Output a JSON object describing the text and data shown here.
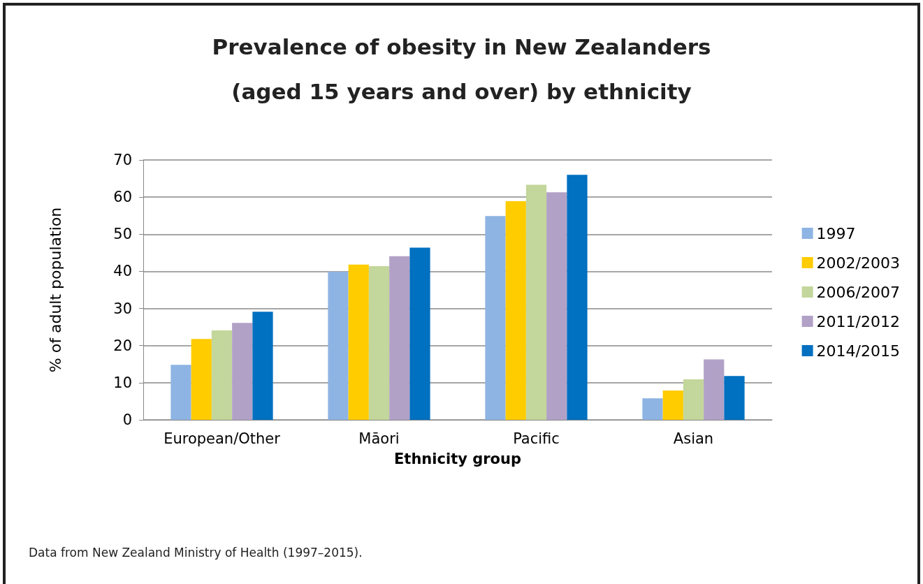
{
  "chart_data": {
    "type": "bar",
    "title": "Prevalence of obesity in New Zealanders\n(aged 15 years and over) by ethnicity",
    "xlabel": "Ethnicity group",
    "ylabel": "% of adult population",
    "categories": [
      "European/Other",
      "Māori",
      "Pacific",
      "Asian"
    ],
    "series": [
      {
        "name": "1997",
        "color": "#8eb4e3",
        "values": [
          14.8,
          39.9,
          54.9,
          5.8
        ]
      },
      {
        "name": "2002/2003",
        "color": "#ffcc00",
        "values": [
          21.8,
          41.8,
          58.9,
          7.9
        ]
      },
      {
        "name": "2006/2007",
        "color": "#c3d69b",
        "values": [
          24.1,
          41.4,
          63.3,
          10.9
        ]
      },
      {
        "name": "2011/2012",
        "color": "#b2a1c7",
        "values": [
          26.1,
          44.1,
          61.3,
          16.3
        ]
      },
      {
        "name": "2014/2015",
        "color": "#0070c0",
        "values": [
          29.1,
          46.4,
          66.0,
          11.8
        ]
      }
    ],
    "ylim": [
      0,
      70
    ],
    "yticks": [
      0,
      10,
      20,
      30,
      40,
      50,
      60,
      70
    ],
    "grid": "y",
    "legend": "right",
    "annotations": [
      "Data from New Zealand Ministry of Health (1997–2015)."
    ]
  }
}
